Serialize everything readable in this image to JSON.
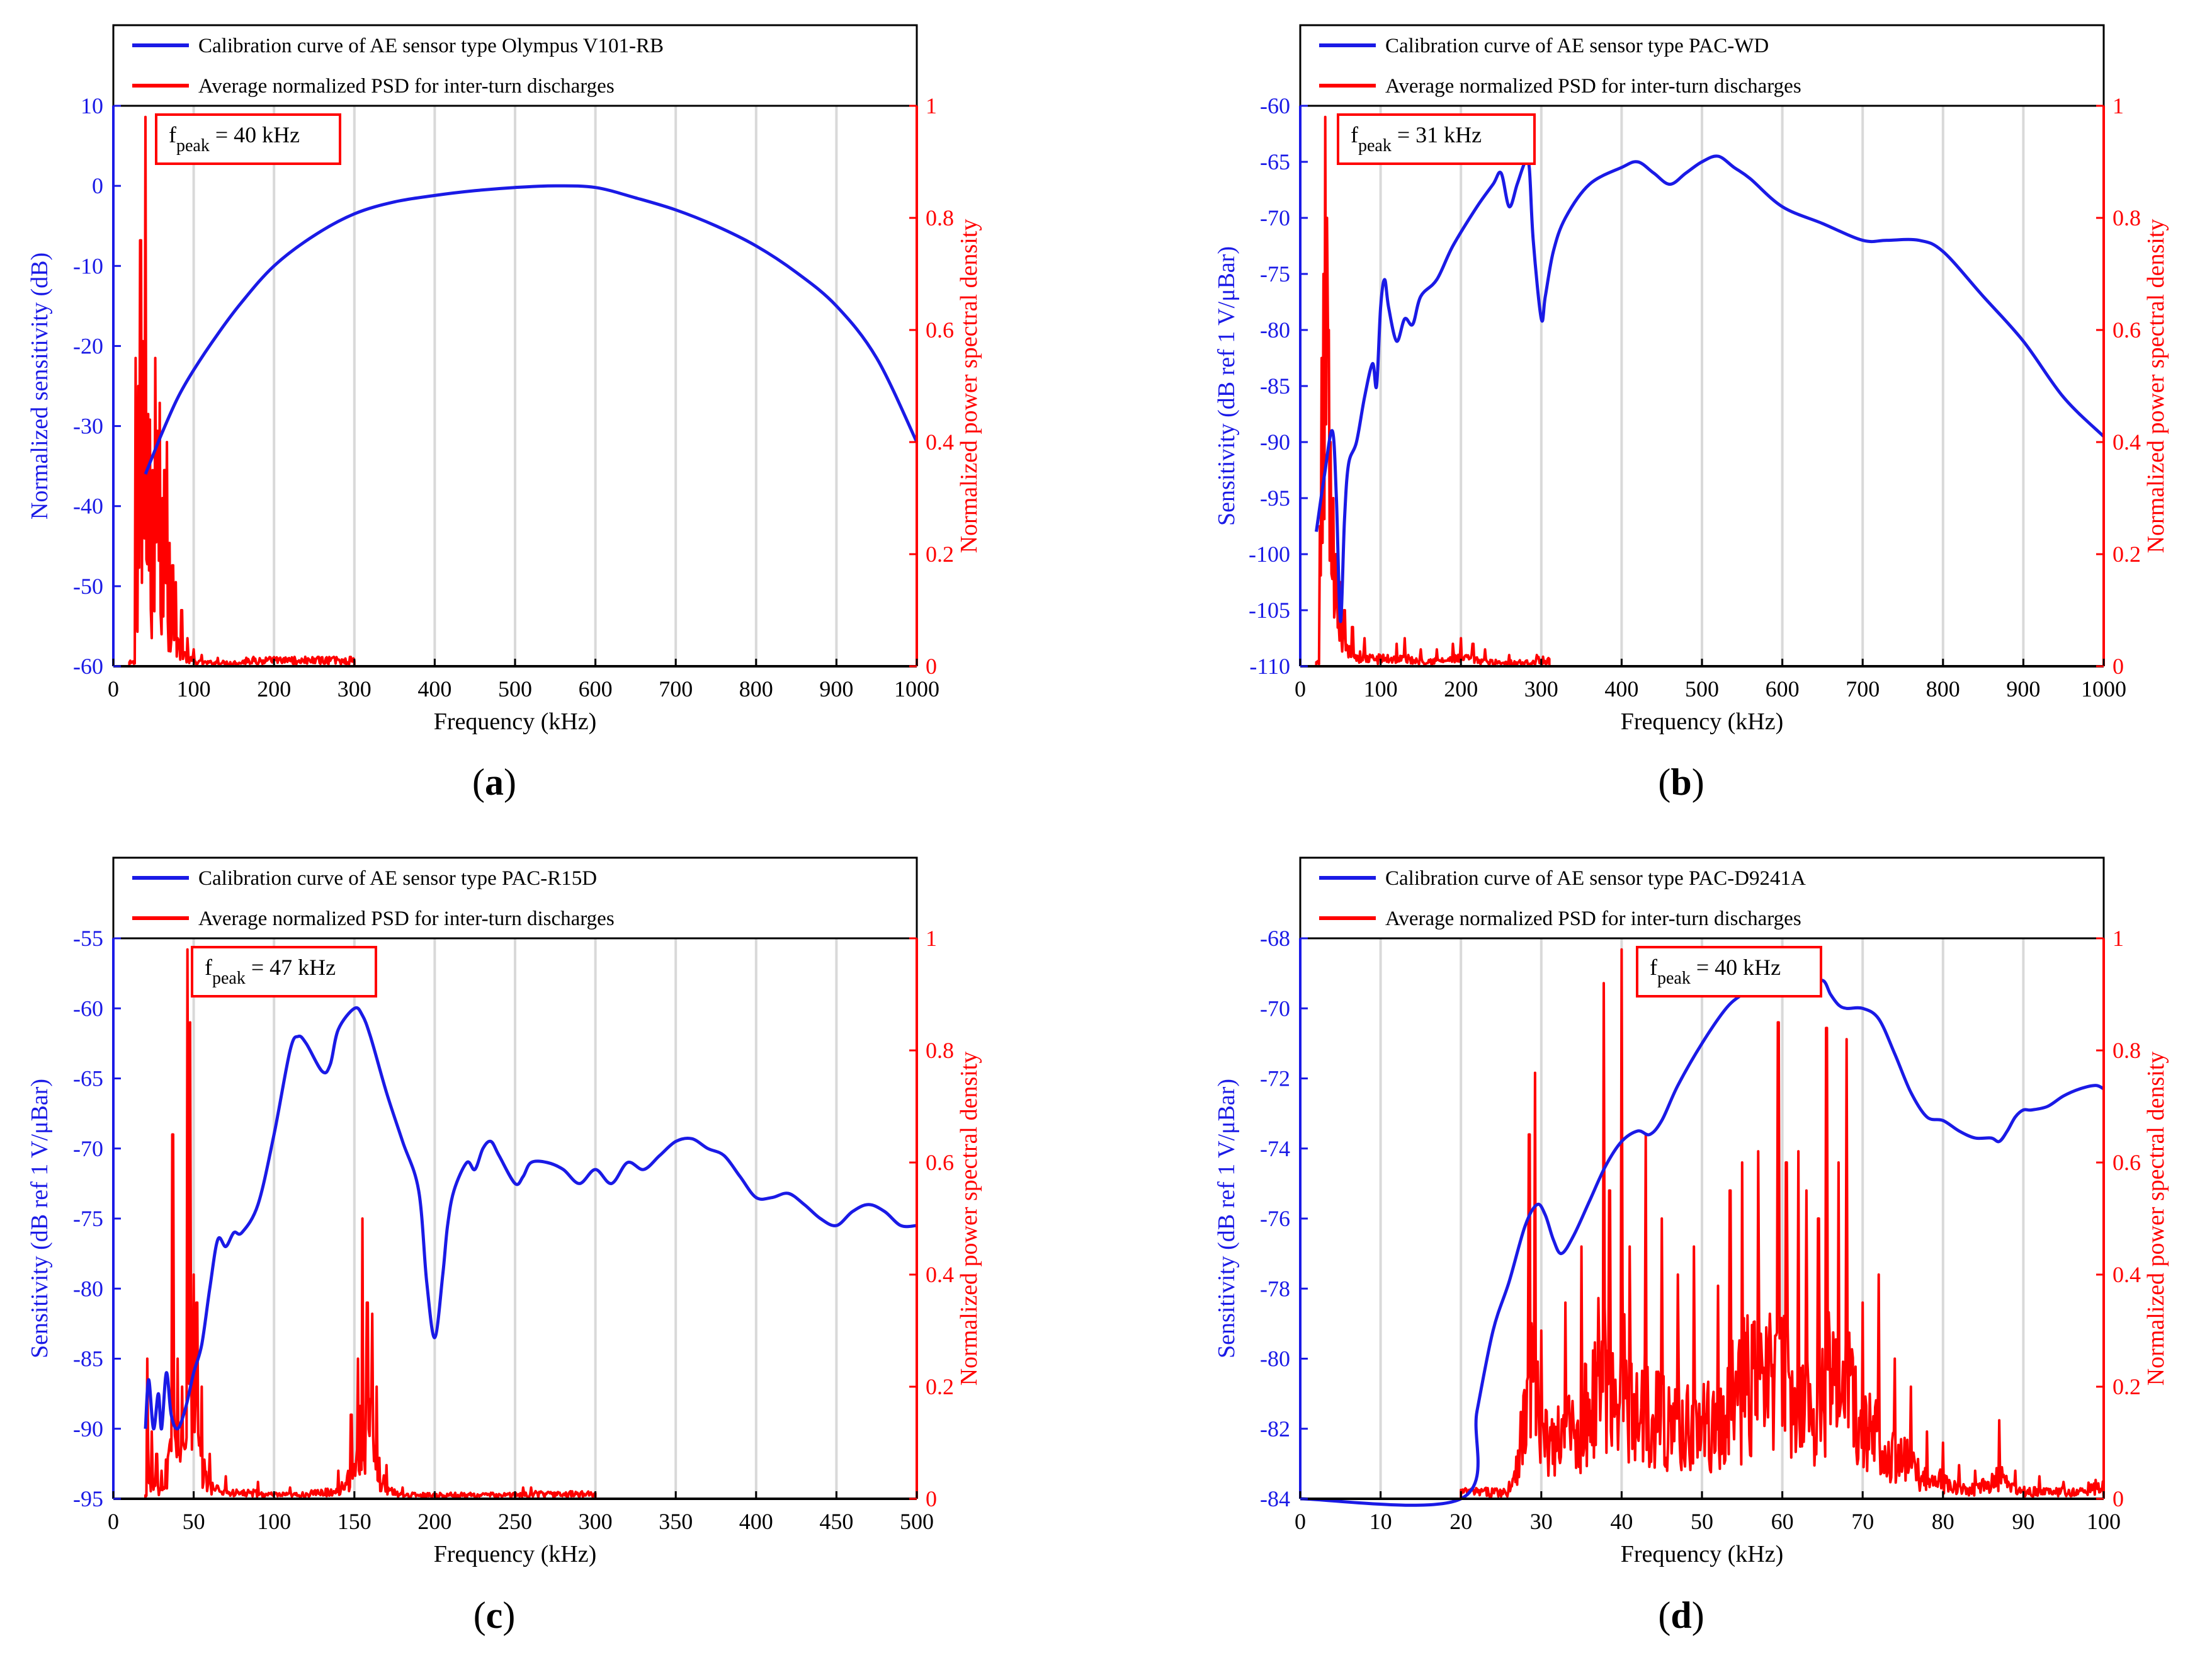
{
  "figure": {
    "x_axis_label": "Frequency (kHz)",
    "right_axis_label": "Normalized power spectral density",
    "psd_legend": "Average normalized PSD for inter-turn discharges",
    "colors": {
      "sensor": "#1a1ae6",
      "psd": "#ff0000",
      "grid": "#d9d9d9",
      "axis": "#000000"
    }
  },
  "chart_data": [
    {
      "panel_label": "(a)",
      "type": "line",
      "sensor_legend": "Calibration curve of AE sensor type Olympus V101-RB",
      "left_axis_label": "Normalized sensitivity (dB)",
      "peak_label": "f",
      "peak_sub": "peak",
      "peak_value": " = 40 kHz",
      "xlim": [
        0,
        1000
      ],
      "xticks": [
        0,
        100,
        200,
        300,
        400,
        500,
        600,
        700,
        800,
        900,
        1000
      ],
      "ylim_left": [
        -60,
        10
      ],
      "yticks_left": [
        10,
        0,
        -10,
        -20,
        -30,
        -40,
        -50,
        -60
      ],
      "ylim_right": [
        0,
        1
      ],
      "yticks_right": [
        1,
        0.8,
        0.6,
        0.4,
        0.2,
        0
      ],
      "psd_range": [
        20,
        300
      ],
      "psd_peaks": [
        [
          28,
          0.55
        ],
        [
          31,
          0.5
        ],
        [
          34,
          0.76
        ],
        [
          37,
          0.58
        ],
        [
          40,
          0.98
        ],
        [
          43,
          0.45
        ],
        [
          46,
          0.44
        ],
        [
          49,
          0.35
        ],
        [
          52,
          0.55
        ],
        [
          55,
          0.42
        ],
        [
          58,
          0.47
        ],
        [
          61,
          0.3
        ],
        [
          64,
          0.35
        ],
        [
          67,
          0.4
        ],
        [
          70,
          0.22
        ],
        [
          74,
          0.18
        ],
        [
          78,
          0.15
        ],
        [
          85,
          0.1
        ],
        [
          92,
          0.05
        ],
        [
          100,
          0.03
        ],
        [
          110,
          0.02
        ],
        [
          130,
          0.015
        ],
        [
          160,
          0.01
        ]
      ],
      "psd_floor": 0.01,
      "sensor_series": {
        "name": "Calibration curve of AE sensor type Olympus V101-RB",
        "x": [
          40,
          60,
          80,
          100,
          130,
          160,
          200,
          250,
          300,
          350,
          400,
          450,
          500,
          550,
          600,
          650,
          700,
          750,
          800,
          850,
          900,
          950,
          1000
        ],
        "y": [
          -36,
          -31,
          -26.5,
          -23,
          -18.5,
          -14.5,
          -10,
          -6.2,
          -3.5,
          -2,
          -1.2,
          -0.6,
          -0.2,
          0,
          -0.2,
          -1.5,
          -3,
          -5,
          -7.5,
          -10.8,
          -15,
          -21.5,
          -32
        ]
      }
    },
    {
      "panel_label": "(b)",
      "type": "line",
      "sensor_legend": "Calibration curve of AE sensor type PAC-WD",
      "left_axis_label": "Sensitivity (dB ref 1 V/μBar)",
      "peak_label": "f",
      "peak_sub": "peak",
      "peak_value": " = 31 kHz",
      "xlim": [
        0,
        1000
      ],
      "xticks": [
        0,
        100,
        200,
        300,
        400,
        500,
        600,
        700,
        800,
        900,
        1000
      ],
      "ylim_left": [
        -110,
        -60
      ],
      "yticks_left": [
        -60,
        -65,
        -70,
        -75,
        -80,
        -85,
        -90,
        -95,
        -100,
        -105,
        -110
      ],
      "ylim_right": [
        0,
        1
      ],
      "yticks_right": [
        1,
        0.8,
        0.6,
        0.4,
        0.2,
        0
      ],
      "psd_range": [
        20,
        310
      ],
      "psd_peaks": [
        [
          24,
          0.25
        ],
        [
          27,
          0.55
        ],
        [
          29,
          0.7
        ],
        [
          31,
          0.98
        ],
        [
          33,
          0.8
        ],
        [
          35,
          0.6
        ],
        [
          38,
          0.4
        ],
        [
          41,
          0.3
        ],
        [
          45,
          0.2
        ],
        [
          50,
          0.15
        ],
        [
          55,
          0.1
        ],
        [
          65,
          0.07
        ],
        [
          80,
          0.05
        ],
        [
          120,
          0.04
        ],
        [
          130,
          0.05
        ],
        [
          150,
          0.03
        ],
        [
          170,
          0.03
        ],
        [
          190,
          0.04
        ],
        [
          200,
          0.05
        ],
        [
          215,
          0.04
        ],
        [
          230,
          0.03
        ],
        [
          260,
          0.02
        ],
        [
          295,
          0.02
        ]
      ],
      "psd_floor": 0.01,
      "sensor_series": {
        "name": "Calibration curve of AE sensor type PAC-WD",
        "x": [
          20,
          30,
          40,
          45,
          50,
          55,
          60,
          70,
          80,
          90,
          95,
          100,
          105,
          110,
          120,
          130,
          140,
          150,
          170,
          190,
          220,
          240,
          250,
          260,
          270,
          280,
          285,
          290,
          300,
          305,
          315,
          330,
          360,
          400,
          420,
          440,
          460,
          480,
          500,
          520,
          540,
          560,
          600,
          650,
          700,
          730,
          770,
          800,
          850,
          900,
          950,
          1000
        ],
        "y": [
          -98,
          -93,
          -89,
          -95,
          -106,
          -97,
          -92,
          -90,
          -86,
          -83,
          -85,
          -78,
          -75.5,
          -78,
          -81,
          -79,
          -79.5,
          -77,
          -75.5,
          -72.5,
          -69,
          -67,
          -66,
          -69,
          -67,
          -65,
          -65.5,
          -72,
          -79,
          -77,
          -73,
          -70,
          -67,
          -65.5,
          -65,
          -66,
          -67,
          -66,
          -65,
          -64.5,
          -65.5,
          -66.5,
          -69,
          -70.5,
          -72,
          -72,
          -72,
          -73,
          -77,
          -81,
          -86,
          -89.5
        ]
      }
    },
    {
      "panel_label": "(c)",
      "type": "line",
      "sensor_legend": "Calibration curve of AE sensor type PAC-R15D",
      "left_axis_label": "Sensitivity (dB ref 1 V/μBar)",
      "peak_label": "f",
      "peak_sub": "peak",
      "peak_value": " = 47 kHz",
      "xlim": [
        0,
        500
      ],
      "xticks": [
        0,
        50,
        100,
        150,
        200,
        250,
        300,
        350,
        400,
        450,
        500
      ],
      "ylim_left": [
        -95,
        -55
      ],
      "yticks_left": [
        -55,
        -60,
        -65,
        -70,
        -75,
        -80,
        -85,
        -90,
        -95
      ],
      "ylim_right": [
        0,
        1
      ],
      "yticks_right": [
        1,
        0.8,
        0.6,
        0.4,
        0.2,
        0
      ],
      "psd_range": [
        20,
        300
      ],
      "psd_peaks": [
        [
          21,
          0.25
        ],
        [
          24,
          0.12
        ],
        [
          27,
          0.08
        ],
        [
          30,
          0.05
        ],
        [
          33,
          0.07
        ],
        [
          37,
          0.65
        ],
        [
          40,
          0.25
        ],
        [
          43,
          0.2
        ],
        [
          46,
          0.98
        ],
        [
          48,
          0.85
        ],
        [
          50,
          0.4
        ],
        [
          52,
          0.35
        ],
        [
          55,
          0.2
        ],
        [
          60,
          0.08
        ],
        [
          70,
          0.04
        ],
        [
          90,
          0.03
        ],
        [
          110,
          0.02
        ],
        [
          140,
          0.05
        ],
        [
          148,
          0.15
        ],
        [
          152,
          0.25
        ],
        [
          155,
          0.5
        ],
        [
          158,
          0.35
        ],
        [
          161,
          0.33
        ],
        [
          164,
          0.2
        ],
        [
          170,
          0.06
        ],
        [
          180,
          0.02
        ],
        [
          255,
          0.02
        ],
        [
          260,
          0.02
        ]
      ],
      "psd_floor": 0.008,
      "sensor_series": {
        "name": "Calibration curve of AE sensor type PAC-R15D",
        "x": [
          20,
          22,
          25,
          28,
          30,
          33,
          36,
          40,
          45,
          50,
          55,
          60,
          65,
          70,
          75,
          80,
          90,
          100,
          110,
          115,
          120,
          130,
          135,
          140,
          150,
          155,
          160,
          170,
          180,
          190,
          195,
          200,
          205,
          208,
          212,
          220,
          225,
          230,
          235,
          240,
          250,
          255,
          260,
          270,
          280,
          290,
          300,
          310,
          320,
          330,
          340,
          350,
          360,
          370,
          380,
          390,
          400,
          410,
          420,
          430,
          440,
          450,
          460,
          470,
          480,
          490,
          500
        ],
        "y": [
          -90,
          -86.5,
          -90,
          -87.5,
          -90,
          -86,
          -89,
          -90,
          -88.5,
          -86,
          -84,
          -80,
          -76.5,
          -77,
          -76,
          -76,
          -74,
          -69,
          -63,
          -62,
          -62.5,
          -64.5,
          -64,
          -61.5,
          -60,
          -60.5,
          -62,
          -66,
          -69.5,
          -73,
          -79.5,
          -83.5,
          -79,
          -75.5,
          -73,
          -71,
          -71.5,
          -70,
          -69.5,
          -70.5,
          -72.5,
          -72,
          -71,
          -71,
          -71.5,
          -72.5,
          -71.5,
          -72.5,
          -71,
          -71.5,
          -70.5,
          -69.5,
          -69.3,
          -70,
          -70.5,
          -72,
          -73.5,
          -73.5,
          -73.2,
          -74,
          -75,
          -75.5,
          -74.5,
          -74,
          -74.5,
          -75.5,
          -75.5
        ]
      }
    },
    {
      "panel_label": "(d)",
      "type": "line",
      "sensor_legend": "Calibration curve of AE sensor type PAC-D9241A",
      "left_axis_label": "Sensitivity (dB ref 1 V/μBar)",
      "peak_label": "f",
      "peak_sub": "peak",
      "peak_value": " = 40 kHz",
      "xlim": [
        0,
        100
      ],
      "xticks": [
        0,
        10,
        20,
        30,
        40,
        50,
        60,
        70,
        80,
        90,
        100
      ],
      "ylim_left": [
        -84,
        -68
      ],
      "yticks_left": [
        -68,
        -70,
        -72,
        -74,
        -76,
        -78,
        -80,
        -82,
        -84
      ],
      "ylim_right": [
        0,
        1
      ],
      "yticks_right": [
        1,
        0.8,
        0.6,
        0.4,
        0.2,
        0
      ],
      "psd_range": [
        20,
        100
      ],
      "psd_peaks": [
        [
          26,
          0.03
        ],
        [
          28.5,
          0.65
        ],
        [
          29.2,
          0.76
        ],
        [
          30,
          0.3
        ],
        [
          33,
          0.35
        ],
        [
          35,
          0.45
        ],
        [
          37.8,
          0.92
        ],
        [
          38.5,
          0.55
        ],
        [
          40,
          0.98
        ],
        [
          41,
          0.45
        ],
        [
          43,
          0.65
        ],
        [
          45,
          0.5
        ],
        [
          47,
          0.4
        ],
        [
          49,
          0.45
        ],
        [
          52,
          0.38
        ],
        [
          53.5,
          0.55
        ],
        [
          55,
          0.6
        ],
        [
          57,
          0.62
        ],
        [
          59.5,
          0.85
        ],
        [
          60.5,
          0.6
        ],
        [
          62,
          0.62
        ],
        [
          63,
          0.55
        ],
        [
          64.5,
          0.5
        ],
        [
          65.5,
          0.84
        ],
        [
          67,
          0.6
        ],
        [
          68,
          0.82
        ],
        [
          70,
          0.35
        ],
        [
          72,
          0.4
        ],
        [
          74,
          0.25
        ],
        [
          76,
          0.2
        ],
        [
          78,
          0.12
        ],
        [
          80,
          0.1
        ],
        [
          82,
          0.06
        ],
        [
          84,
          0.05
        ],
        [
          87,
          0.14
        ],
        [
          89,
          0.05
        ],
        [
          92,
          0.04
        ],
        [
          95,
          0.03
        ],
        [
          98,
          0.02
        ]
      ],
      "psd_floor": 0.02,
      "sensor_series": {
        "name": "Calibration curve of AE sensor type PAC-D9241A",
        "x": [
          0,
          20,
          22,
          24,
          26,
          28,
          29.5,
          30.5,
          31.5,
          32.5,
          34,
          36,
          38,
          40,
          42,
          43.5,
          45,
          47,
          50,
          53,
          55,
          57,
          59,
          61,
          63,
          65,
          66,
          67,
          68,
          70,
          72,
          74,
          76,
          78,
          80,
          82,
          84,
          86,
          87,
          88,
          89,
          90,
          91,
          93,
          95,
          97,
          99,
          100
        ],
        "y": [
          -84,
          -84,
          -81.5,
          -79.2,
          -77.8,
          -76.2,
          -75.6,
          -75.9,
          -76.6,
          -77,
          -76.5,
          -75.5,
          -74.5,
          -73.8,
          -73.5,
          -73.6,
          -73.2,
          -72.2,
          -71,
          -70,
          -69.6,
          -69.3,
          -69.1,
          -69.2,
          -69.4,
          -69.2,
          -69.6,
          -69.9,
          -70,
          -70,
          -70.3,
          -71.3,
          -72.4,
          -73.1,
          -73.2,
          -73.5,
          -73.7,
          -73.7,
          -73.8,
          -73.5,
          -73.1,
          -72.9,
          -72.9,
          -72.8,
          -72.5,
          -72.3,
          -72.2,
          -72.3
        ]
      }
    }
  ]
}
